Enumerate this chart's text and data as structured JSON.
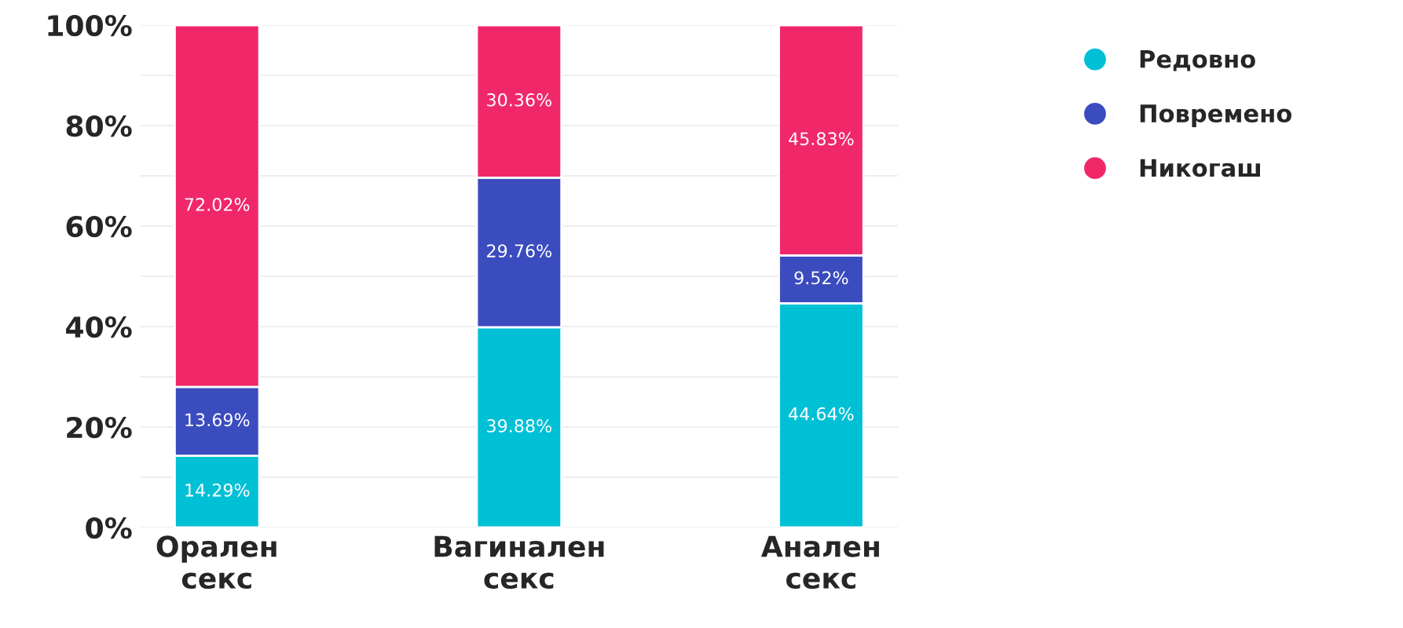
{
  "chart_data": {
    "type": "bar",
    "stacked": true,
    "categories": [
      "Орален\nсекс",
      "Вагинален\nсекс",
      "Анален\nсекс"
    ],
    "series": [
      {
        "name": "Редовно",
        "color": "#00c0d6",
        "values": [
          14.29,
          39.88,
          44.64
        ],
        "value_labels": [
          "14.29%",
          "39.88%",
          "44.64%"
        ]
      },
      {
        "name": "Повремено",
        "color": "#3b4cbf",
        "values": [
          13.69,
          29.76,
          9.52
        ],
        "value_labels": [
          "13.69%",
          "29.76%",
          "9.52%"
        ]
      },
      {
        "name": "Никогаш",
        "color": "#f0286a",
        "values": [
          72.02,
          30.36,
          45.83
        ],
        "value_labels": [
          "72.02%",
          "30.36%",
          "45.83%"
        ]
      }
    ],
    "ylim": [
      0,
      100
    ],
    "yticks": [
      {
        "value": 0,
        "label": "0%"
      },
      {
        "value": 10,
        "label": null
      },
      {
        "value": 20,
        "label": "20%"
      },
      {
        "value": 30,
        "label": null
      },
      {
        "value": 40,
        "label": "40%"
      },
      {
        "value": 50,
        "label": null
      },
      {
        "value": 60,
        "label": "60%"
      },
      {
        "value": 70,
        "label": null
      },
      {
        "value": 80,
        "label": "80%"
      },
      {
        "value": 90,
        "label": null
      },
      {
        "value": 100,
        "label": "100%"
      }
    ],
    "grid": "y",
    "legend": "right"
  }
}
